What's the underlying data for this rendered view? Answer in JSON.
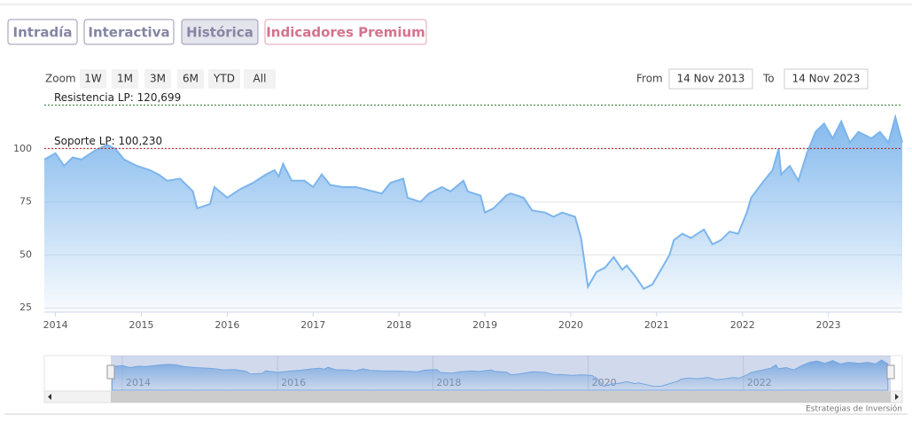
{
  "tabs": [
    "Intradía",
    "Interactiva",
    "Histórica",
    "Indicadores Premium"
  ],
  "zoom_label": "Zoom",
  "zoom_buttons": [
    "1W",
    "1M",
    "3M",
    "6M",
    "YTD",
    "All"
  ],
  "from_label": "From",
  "from_date": "14 Nov 2013",
  "to_label": "To",
  "to_date": "14 Nov 2023",
  "credit": "Estrategias de Inversión",
  "chart_data": {
    "type": "area",
    "color": "#7cb5ec",
    "x": [
      2013.87,
      2014.0,
      2014.1,
      2014.2,
      2014.3,
      2014.45,
      2014.6,
      2014.7,
      2014.8,
      2014.95,
      2015.1,
      2015.2,
      2015.3,
      2015.45,
      2015.6,
      2015.65,
      2015.8,
      2015.85,
      2016.0,
      2016.15,
      2016.3,
      2016.45,
      2016.55,
      2016.6,
      2016.65,
      2016.75,
      2016.9,
      2017.0,
      2017.1,
      2017.2,
      2017.35,
      2017.5,
      2017.6,
      2017.8,
      2017.9,
      2018.05,
      2018.1,
      2018.25,
      2018.35,
      2018.5,
      2018.6,
      2018.75,
      2018.8,
      2018.95,
      2019.0,
      2019.1,
      2019.25,
      2019.3,
      2019.45,
      2019.55,
      2019.7,
      2019.8,
      2019.9,
      2020.05,
      2020.12,
      2020.2,
      2020.3,
      2020.4,
      2020.5,
      2020.6,
      2020.65,
      2020.75,
      2020.85,
      2020.95,
      2021.05,
      2021.15,
      2021.2,
      2021.3,
      2021.4,
      2021.55,
      2021.65,
      2021.75,
      2021.85,
      2021.95,
      2022.05,
      2022.1,
      2022.25,
      2022.35,
      2022.42,
      2022.45,
      2022.55,
      2022.65,
      2022.75,
      2022.85,
      2022.95,
      2023.05,
      2023.15,
      2023.25,
      2023.35,
      2023.5,
      2023.6,
      2023.7,
      2023.78,
      2023.86
    ],
    "values": [
      95,
      98,
      92,
      96,
      95,
      99,
      102,
      100,
      95,
      92,
      90,
      88,
      85,
      86,
      80,
      72,
      74,
      82,
      77,
      81,
      84,
      88,
      90,
      87,
      93,
      85,
      85,
      82,
      88,
      83,
      82,
      82,
      81,
      79,
      84,
      86,
      77,
      75,
      79,
      82,
      80,
      85,
      80,
      78,
      70,
      72,
      78,
      79,
      77,
      71,
      70,
      68,
      70,
      68,
      58,
      35,
      42,
      44,
      49,
      43,
      45,
      40,
      34,
      36,
      43,
      50,
      57,
      60,
      58,
      62,
      55,
      57,
      61,
      60,
      70,
      77,
      85,
      90,
      100,
      88,
      92,
      85,
      98,
      108,
      112,
      105,
      113,
      103,
      108,
      105,
      108,
      103,
      115,
      103
    ],
    "xlim": [
      2013.87,
      2023.86
    ],
    "xticks": [
      2014,
      2015,
      2016,
      2017,
      2018,
      2019,
      2020,
      2021,
      2022,
      2023
    ],
    "ylim": [
      23,
      123
    ],
    "yticks": [
      25,
      50,
      75,
      100
    ],
    "grid": true,
    "annotations": [
      {
        "label": "Resistencia LP: 120,699",
        "value": 120.699,
        "color": "#2e7d32"
      },
      {
        "label": "Soporte LP: 100,230",
        "value": 100.23,
        "color": "#b71c1c"
      }
    ],
    "navigator_xticks": [
      2014,
      2016,
      2018,
      2020,
      2022
    ]
  }
}
